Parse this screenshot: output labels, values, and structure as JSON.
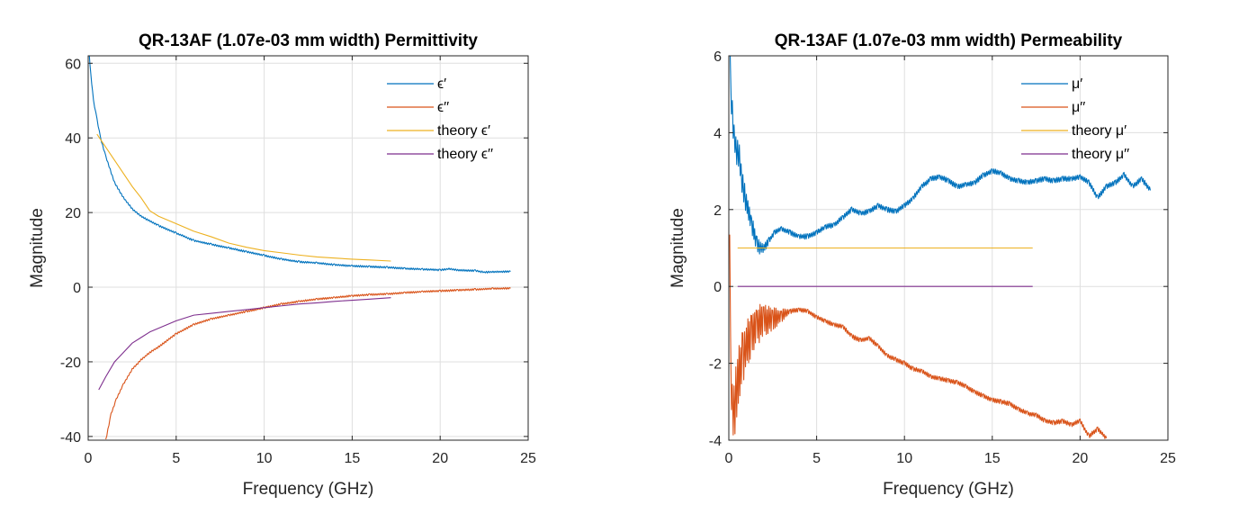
{
  "chart_data": [
    {
      "type": "line",
      "title": "QR-13AF (1.07e-03 mm width) Permittivity",
      "xlabel": "Frequency (GHz)",
      "ylabel": "Magnitude",
      "xlim": [
        0,
        25
      ],
      "ylim": [
        -41,
        62
      ],
      "xticks": [
        0,
        5,
        10,
        15,
        20,
        25
      ],
      "yticks": [
        -40,
        -20,
        0,
        20,
        40,
        60
      ],
      "grid": true,
      "legend": "top-right",
      "series": [
        {
          "name": "ϵ′",
          "color": "#0072BD",
          "x": [
            0.05,
            0.15,
            0.3,
            0.5,
            0.7,
            1.0,
            1.5,
            2.0,
            2.5,
            3.0,
            4.0,
            5.0,
            6.0,
            7.0,
            8.0,
            9.0,
            10.0,
            11.0,
            12.0,
            13.0,
            14.0,
            15.0,
            16.0,
            17.0,
            18.0,
            19.0,
            20.0,
            20.5,
            21.0,
            22.0,
            22.5,
            23.0,
            24.0
          ],
          "y": [
            63,
            57,
            50,
            45,
            40,
            35,
            28,
            24,
            21,
            19,
            16.5,
            14.5,
            12.5,
            11.5,
            10.5,
            9.5,
            8.5,
            7.5,
            6.8,
            6.5,
            6.0,
            5.7,
            5.5,
            5.3,
            5.0,
            4.8,
            4.6,
            4.9,
            4.6,
            4.4,
            4.0,
            4.1,
            4.2
          ]
        },
        {
          "name": "ϵ′′",
          "color": "#D95319",
          "x": [
            1.0,
            1.3,
            1.6,
            2.0,
            2.5,
            3.0,
            3.5,
            4.0,
            5.0,
            6.0,
            7.0,
            8.0,
            9.0,
            10.0,
            11.0,
            12.0,
            13.0,
            14.0,
            15.0,
            16.0,
            17.0,
            18.0,
            19.0,
            20.0,
            21.0,
            22.0,
            23.0,
            24.0
          ],
          "y": [
            -41,
            -34,
            -30,
            -26,
            -22,
            -19.5,
            -17.5,
            -16,
            -12.5,
            -10,
            -8.5,
            -7.5,
            -6.5,
            -5.5,
            -4.5,
            -3.8,
            -3.2,
            -2.8,
            -2.3,
            -2.0,
            -1.8,
            -1.5,
            -1.2,
            -1.0,
            -0.8,
            -0.6,
            -0.4,
            -0.3
          ]
        },
        {
          "name": "theory ϵ′",
          "color": "#EDB120",
          "x": [
            0.5,
            1.0,
            1.5,
            2.0,
            2.5,
            3.0,
            3.5,
            4.0,
            5.0,
            6.0,
            7.0,
            8.0,
            9.0,
            10.0,
            11.0,
            12.0,
            13.0,
            14.0,
            15.0,
            16.0,
            17.2
          ],
          "y": [
            41,
            37.5,
            34,
            30.5,
            27,
            24,
            20.5,
            19,
            17,
            15,
            13.5,
            11.8,
            10.7,
            9.8,
            9.2,
            8.6,
            8.1,
            7.8,
            7.5,
            7.3,
            7.0
          ]
        },
        {
          "name": "theory ϵ′′",
          "color": "#7E2F8E",
          "x": [
            0.6,
            1.0,
            1.5,
            2.0,
            2.5,
            3.0,
            3.5,
            4.0,
            5.0,
            6.0,
            7.0,
            8.0,
            9.0,
            10.0,
            11.0,
            12.0,
            13.0,
            14.0,
            15.0,
            16.0,
            17.2
          ],
          "y": [
            -27.5,
            -24,
            -20,
            -17.5,
            -15,
            -13.5,
            -12,
            -11,
            -9,
            -7.5,
            -7,
            -6.5,
            -6,
            -5.5,
            -5,
            -4.5,
            -4.2,
            -3.8,
            -3.5,
            -3.2,
            -2.8
          ]
        }
      ]
    },
    {
      "type": "line",
      "title": "QR-13AF (1.07e-03 mm width) Permeability",
      "xlabel": "Frequency (GHz)",
      "ylabel": "Magnitude",
      "xlim": [
        0,
        25
      ],
      "ylim": [
        -4,
        6
      ],
      "xticks": [
        0,
        5,
        10,
        15,
        20,
        25
      ],
      "yticks": [
        -4,
        -2,
        0,
        2,
        4,
        6
      ],
      "grid": true,
      "legend": "top-right",
      "series": [
        {
          "name": "μ′",
          "color": "#0072BD",
          "x": [
            0.05,
            0.1,
            0.2,
            0.3,
            0.4,
            0.6,
            0.8,
            1.0,
            1.3,
            1.6,
            1.8,
            2.0,
            2.3,
            2.6,
            3.0,
            3.5,
            4.0,
            4.5,
            5.0,
            5.5,
            6.0,
            6.5,
            7.0,
            7.5,
            8.0,
            8.5,
            9.0,
            9.5,
            10.0,
            10.5,
            11.0,
            11.5,
            12.0,
            12.5,
            13.0,
            13.5,
            14.0,
            14.5,
            15.0,
            15.5,
            16.0,
            16.5,
            17.0,
            17.5,
            18.0,
            18.5,
            19.0,
            19.5,
            20.0,
            20.5,
            21.0,
            21.5,
            22.0,
            22.5,
            23.0,
            23.5,
            24.0
          ],
          "y": [
            6.2,
            5.2,
            4.5,
            3.9,
            3.6,
            3.3,
            2.6,
            2.2,
            1.6,
            1.1,
            1.0,
            1.0,
            1.2,
            1.4,
            1.5,
            1.4,
            1.3,
            1.3,
            1.4,
            1.55,
            1.6,
            1.8,
            2.0,
            1.9,
            1.95,
            2.1,
            2.0,
            1.95,
            2.1,
            2.3,
            2.6,
            2.8,
            2.85,
            2.75,
            2.6,
            2.65,
            2.7,
            2.9,
            3.0,
            2.95,
            2.8,
            2.75,
            2.7,
            2.75,
            2.8,
            2.75,
            2.8,
            2.8,
            2.85,
            2.7,
            2.3,
            2.6,
            2.7,
            2.9,
            2.6,
            2.8,
            2.5
          ]
        },
        {
          "name": "μ′′",
          "color": "#D95319",
          "x": [
            0.05,
            0.1,
            0.2,
            0.3,
            0.5,
            0.8,
            1.0,
            1.3,
            1.6,
            2.0,
            2.5,
            3.0,
            3.5,
            4.0,
            4.5,
            5.0,
            5.5,
            6.0,
            6.5,
            7.0,
            7.5,
            8.0,
            8.5,
            9.0,
            9.5,
            10.0,
            10.5,
            11.0,
            11.5,
            12.0,
            12.5,
            13.0,
            13.5,
            14.0,
            14.5,
            15.0,
            15.5,
            16.0,
            16.5,
            17.0,
            17.5,
            18.0,
            18.5,
            19.0,
            19.5,
            20.0,
            20.5,
            21.0,
            21.5
          ],
          "y": [
            0.5,
            -2.0,
            -3.3,
            -3.2,
            -2.4,
            -1.8,
            -1.5,
            -1.2,
            -1.0,
            -0.9,
            -0.85,
            -0.75,
            -0.65,
            -0.6,
            -0.65,
            -0.8,
            -0.9,
            -1.0,
            -1.05,
            -1.3,
            -1.4,
            -1.35,
            -1.55,
            -1.8,
            -1.9,
            -2.0,
            -2.15,
            -2.2,
            -2.35,
            -2.4,
            -2.45,
            -2.5,
            -2.6,
            -2.75,
            -2.85,
            -2.95,
            -3.0,
            -3.05,
            -3.2,
            -3.3,
            -3.35,
            -3.5,
            -3.55,
            -3.5,
            -3.6,
            -3.5,
            -3.9,
            -3.7,
            -3.95
          ]
        },
        {
          "name": "theory μ′",
          "color": "#EDB120",
          "x": [
            0.5,
            17.3
          ],
          "y": [
            1.0,
            1.0
          ]
        },
        {
          "name": "theory μ′′",
          "color": "#7E2F8E",
          "x": [
            0.5,
            17.3
          ],
          "y": [
            0.0,
            0.0
          ]
        }
      ]
    }
  ]
}
